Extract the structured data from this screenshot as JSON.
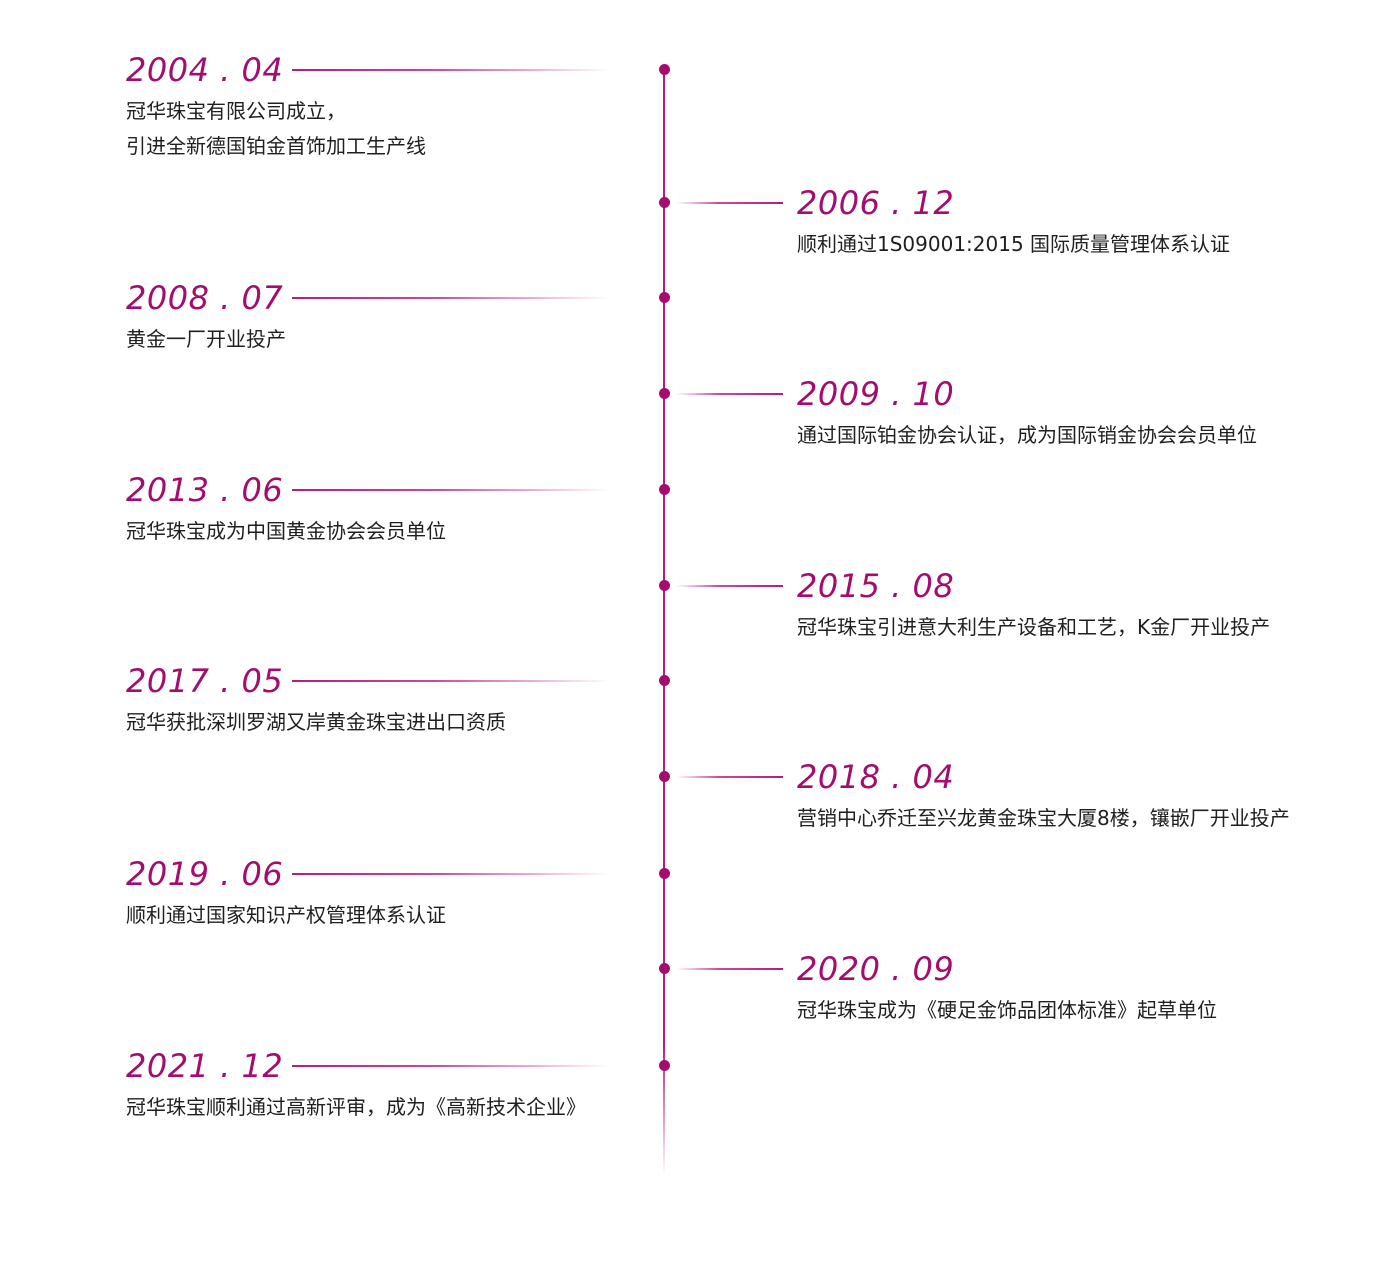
{
  "colors": {
    "accent": "#a30d6e",
    "text": "#1f1f1f",
    "background": "#ffffff"
  },
  "events": [
    {
      "date": "2004 . 04",
      "lines": [
        "冠华珠宝有限公司成立，",
        "引进全新德国铂金首饰加工生产线"
      ]
    },
    {
      "date": "2006 . 12",
      "lines": [
        "顺利通过1S09001:2015 国际质量管理体系认证"
      ]
    },
    {
      "date": "2008 . 07",
      "lines": [
        "黄金一厂开业投产"
      ]
    },
    {
      "date": "2009 . 10",
      "lines": [
        "通过国际铂金协会认证，成为国际销金协会会员单位"
      ]
    },
    {
      "date": "2013 . 06",
      "lines": [
        "冠华珠宝成为中国黄金协会会员单位"
      ]
    },
    {
      "date": "2015 . 08",
      "lines": [
        "冠华珠宝引进意大利生产设备和工艺，K金厂开业投产"
      ]
    },
    {
      "date": "2017 . 05",
      "lines": [
        "冠华获批深圳罗湖又岸黄金珠宝进出口资质"
      ]
    },
    {
      "date": "2018 . 04",
      "lines": [
        "营销中心乔迁至兴龙黄金珠宝大厦8楼，镶嵌厂开业投产"
      ]
    },
    {
      "date": "2019 . 06",
      "lines": [
        "顺利通过国家知识产权管理体系认证"
      ]
    },
    {
      "date": "2020 . 09",
      "lines": [
        "冠华珠宝成为《硬足金饰品团体标准》起草单位"
      ]
    },
    {
      "date": "2021 . 12",
      "lines": [
        "冠华珠宝顺利通过高新评审，成为《高新技术企业》"
      ]
    }
  ]
}
